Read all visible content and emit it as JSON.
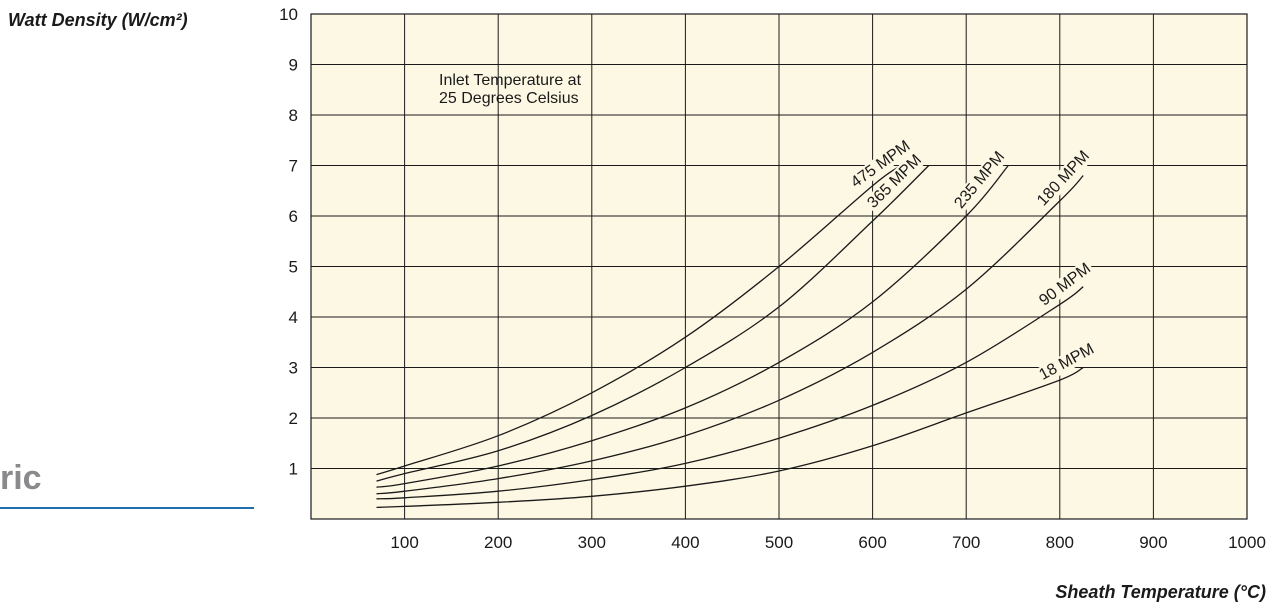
{
  "side_fragment": {
    "text": "ric",
    "rule_color": "#1f6fae"
  },
  "chart_data": {
    "type": "line",
    "title": "",
    "ylabel": "Watt Density (W/cm²)",
    "xlabel": "Sheath Temperature (°C)",
    "xlim": [
      0,
      1000
    ],
    "ylim": [
      0,
      10
    ],
    "x_ticks": [
      "100",
      "200",
      "300",
      "400",
      "500",
      "600",
      "700",
      "800",
      "900",
      "1000"
    ],
    "y_ticks": [
      "1",
      "2",
      "3",
      "4",
      "5",
      "6",
      "7",
      "8",
      "9",
      "10"
    ],
    "grid": true,
    "plot_background": "#fdf8e3",
    "line_color": "#1a1a1a",
    "annotation": [
      "Inlet Temperature at",
      "25 Degrees Celsius"
    ],
    "series": [
      {
        "name": "475 MPM",
        "x": [
          70,
          100,
          200,
          300,
          400,
          500,
          600,
          630
        ],
        "y": [
          0.88,
          1.05,
          1.65,
          2.5,
          3.6,
          5.0,
          6.6,
          7.0
        ]
      },
      {
        "name": "365 MPM",
        "x": [
          70,
          100,
          200,
          300,
          400,
          500,
          600,
          660
        ],
        "y": [
          0.75,
          0.9,
          1.35,
          2.05,
          3.0,
          4.2,
          5.9,
          7.0
        ]
      },
      {
        "name": "235 MPM",
        "x": [
          70,
          100,
          200,
          300,
          400,
          500,
          600,
          700,
          745
        ],
        "y": [
          0.63,
          0.7,
          1.05,
          1.55,
          2.2,
          3.1,
          4.3,
          6.0,
          7.0
        ]
      },
      {
        "name": "180 MPM",
        "x": [
          70,
          100,
          200,
          300,
          400,
          500,
          600,
          700,
          800,
          825
        ],
        "y": [
          0.5,
          0.55,
          0.8,
          1.15,
          1.65,
          2.35,
          3.3,
          4.55,
          6.3,
          6.8
        ]
      },
      {
        "name": "90 MPM",
        "x": [
          70,
          100,
          200,
          300,
          400,
          500,
          600,
          700,
          800,
          825
        ],
        "y": [
          0.4,
          0.42,
          0.55,
          0.78,
          1.1,
          1.6,
          2.25,
          3.1,
          4.25,
          4.6
        ]
      },
      {
        "name": "18 MPM",
        "x": [
          70,
          100,
          200,
          300,
          400,
          500,
          600,
          700,
          800,
          825
        ],
        "y": [
          0.23,
          0.25,
          0.33,
          0.45,
          0.65,
          0.95,
          1.45,
          2.1,
          2.75,
          3.0
        ]
      }
    ]
  }
}
